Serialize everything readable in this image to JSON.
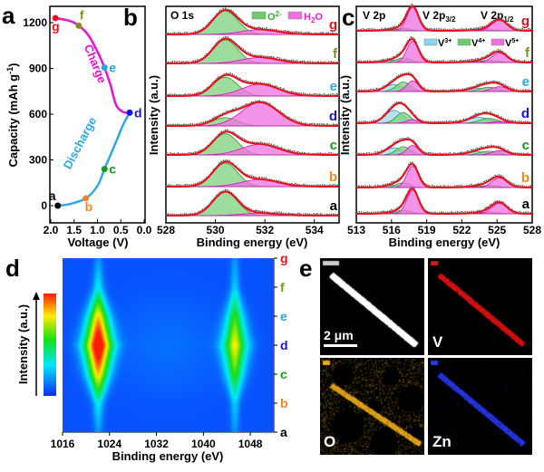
{
  "figure": {
    "panel_labels": [
      "a",
      "b",
      "c",
      "d",
      "e"
    ],
    "state_labels": [
      "a",
      "b",
      "c",
      "d",
      "e",
      "f",
      "g"
    ],
    "state_colors": [
      "#000000",
      "#f5861f",
      "#179a1a",
      "#1414d2",
      "#2aa6e2",
      "#8b8b1c",
      "#e8121c"
    ]
  },
  "chart_data": [
    {
      "panel": "a",
      "type": "line",
      "xlabel": "Voltage (V)",
      "ylabel_main": "Capacity (mAh g",
      "ylabel_sup": "-1",
      "ylabel_end": ")",
      "xlim": [
        2.0,
        0.0
      ],
      "ylim": [
        -120,
        1310
      ],
      "xticks": [
        "2.0",
        "1.5",
        "1.0",
        "0.5",
        "0.0"
      ],
      "yticks": [
        "0",
        "300",
        "600",
        "900",
        "1200"
      ],
      "series": [
        {
          "name": "Discharge",
          "color": "#2fa8e6",
          "points": [
            [
              1.85,
              0
            ],
            [
              1.6,
              10
            ],
            [
              1.25,
              48
            ],
            [
              1.0,
              130
            ],
            [
              0.85,
              240
            ],
            [
              0.6,
              420
            ],
            [
              0.45,
              530
            ],
            [
              0.31,
              610
            ]
          ]
        },
        {
          "name": "Charge",
          "color": "#e614d2",
          "points": [
            [
              0.31,
              610
            ],
            [
              0.45,
              614
            ],
            [
              0.6,
              660
            ],
            [
              0.72,
              790
            ],
            [
              0.85,
              905
            ],
            [
              1.0,
              1010
            ],
            [
              1.2,
              1120
            ],
            [
              1.4,
              1180
            ],
            [
              1.6,
              1212
            ],
            [
              1.9,
              1230
            ]
          ]
        }
      ],
      "markers": [
        {
          "label": "a",
          "voltage": 1.85,
          "capacity": 0
        },
        {
          "label": "b",
          "voltage": 1.25,
          "capacity": 48
        },
        {
          "label": "c",
          "voltage": 0.85,
          "capacity": 240
        },
        {
          "label": "d",
          "voltage": 0.31,
          "capacity": 610
        },
        {
          "label": "e",
          "voltage": 0.85,
          "capacity": 905
        },
        {
          "label": "f",
          "voltage": 1.4,
          "capacity": 1180
        },
        {
          "label": "g",
          "voltage": 1.9,
          "capacity": 1230
        }
      ]
    },
    {
      "panel": "b",
      "type": "line",
      "title": "O 1s",
      "xlabel": "Binding energy (eV)",
      "ylabel": "Intensity (a.u.)",
      "xlim": [
        528,
        535
      ],
      "xticks": [
        528,
        530,
        532,
        534
      ],
      "legend": [
        {
          "name_main": "O",
          "name_sup": "2-",
          "color": "#4cc24c"
        },
        {
          "name_main": "H",
          "name_sub": "2",
          "name_end": "O",
          "color": "#ee22d6"
        }
      ],
      "components": [
        {
          "name": "O2-",
          "center": 530.4,
          "width": 0.5
        },
        {
          "name": "H2O",
          "center": 531.8,
          "width": 0.75
        }
      ],
      "states": [
        {
          "label": "a",
          "amplitudes": [
            1.0,
            0.1
          ]
        },
        {
          "label": "b",
          "amplitudes": [
            1.0,
            0.3
          ]
        },
        {
          "label": "c",
          "amplitudes": [
            0.9,
            0.45
          ]
        },
        {
          "label": "d",
          "amplitudes": [
            0.35,
            1.0
          ]
        },
        {
          "label": "e",
          "amplitudes": [
            0.8,
            0.5
          ]
        },
        {
          "label": "f",
          "amplitudes": [
            1.0,
            0.25
          ]
        },
        {
          "label": "g",
          "amplitudes": [
            1.0,
            0.2
          ]
        }
      ]
    },
    {
      "panel": "c",
      "type": "line",
      "title": "V 2p",
      "peak_label_1": {
        "main": "V 2p",
        "sub": "3/2"
      },
      "peak_label_2": {
        "main": "V 2p",
        "sub": "1/2"
      },
      "xlabel": "Binding energy (eV)",
      "ylabel": "Intensity (a.u.)",
      "xlim": [
        513,
        528
      ],
      "xticks": [
        513,
        516,
        519,
        522,
        525,
        528
      ],
      "legend": [
        {
          "name_main": "V",
          "name_sup": "3+",
          "color": "#6cc6ea"
        },
        {
          "name_main": "V",
          "name_sup": "4+",
          "color": "#5cc05c"
        },
        {
          "name_main": "V",
          "name_sup": "5+",
          "color": "#ee22d6"
        }
      ],
      "components": [
        {
          "name": "V3+",
          "centers": [
            516.2,
            523.5
          ],
          "width": 0.75
        },
        {
          "name": "V4+",
          "centers": [
            517.0,
            524.3
          ],
          "width": 0.6
        },
        {
          "name": "V5+",
          "centers": [
            517.8,
            525.2
          ],
          "width": 0.5
        }
      ],
      "states": [
        {
          "label": "a",
          "amplitudes": [
            0.05,
            0.15,
            1.0
          ]
        },
        {
          "label": "b",
          "amplitudes": [
            0.1,
            0.2,
            0.9
          ]
        },
        {
          "label": "c",
          "amplitudes": [
            0.3,
            0.35,
            0.4
          ]
        },
        {
          "label": "d",
          "amplitudes": [
            0.55,
            0.45,
            0.15
          ]
        },
        {
          "label": "e",
          "amplitudes": [
            0.3,
            0.4,
            0.45
          ]
        },
        {
          "label": "f",
          "amplitudes": [
            0.1,
            0.2,
            0.9
          ]
        },
        {
          "label": "g",
          "amplitudes": [
            0.05,
            0.1,
            1.0
          ]
        }
      ]
    },
    {
      "panel": "d",
      "type": "heatmap",
      "xlabel": "Binding energy (eV)",
      "ylabel": "Intensity (a.u.)",
      "xlim": [
        1016,
        1052
      ],
      "xticks": [
        1016,
        1024,
        1032,
        1040,
        1048
      ],
      "y_categories": [
        "a",
        "b",
        "c",
        "d",
        "e",
        "f",
        "g"
      ],
      "peaks_eV": [
        1022.0,
        1045.3
      ],
      "relative_intensity_by_state": [
        0.0,
        0.15,
        0.65,
        1.0,
        0.65,
        0.15,
        0.0
      ],
      "colormap": [
        "#0a2cff",
        "#00e8ff",
        "#14e014",
        "#ffee00",
        "#ff1a00"
      ]
    },
    {
      "panel": "e",
      "type": "image",
      "scale_bar": "2 μm",
      "maps": [
        {
          "element": "",
          "color": "#ffffff"
        },
        {
          "element": "V",
          "color": "#e01010"
        },
        {
          "element": "O",
          "color": "#e8a818"
        },
        {
          "element": "Zn",
          "color": "#2a3ae8"
        }
      ]
    }
  ]
}
